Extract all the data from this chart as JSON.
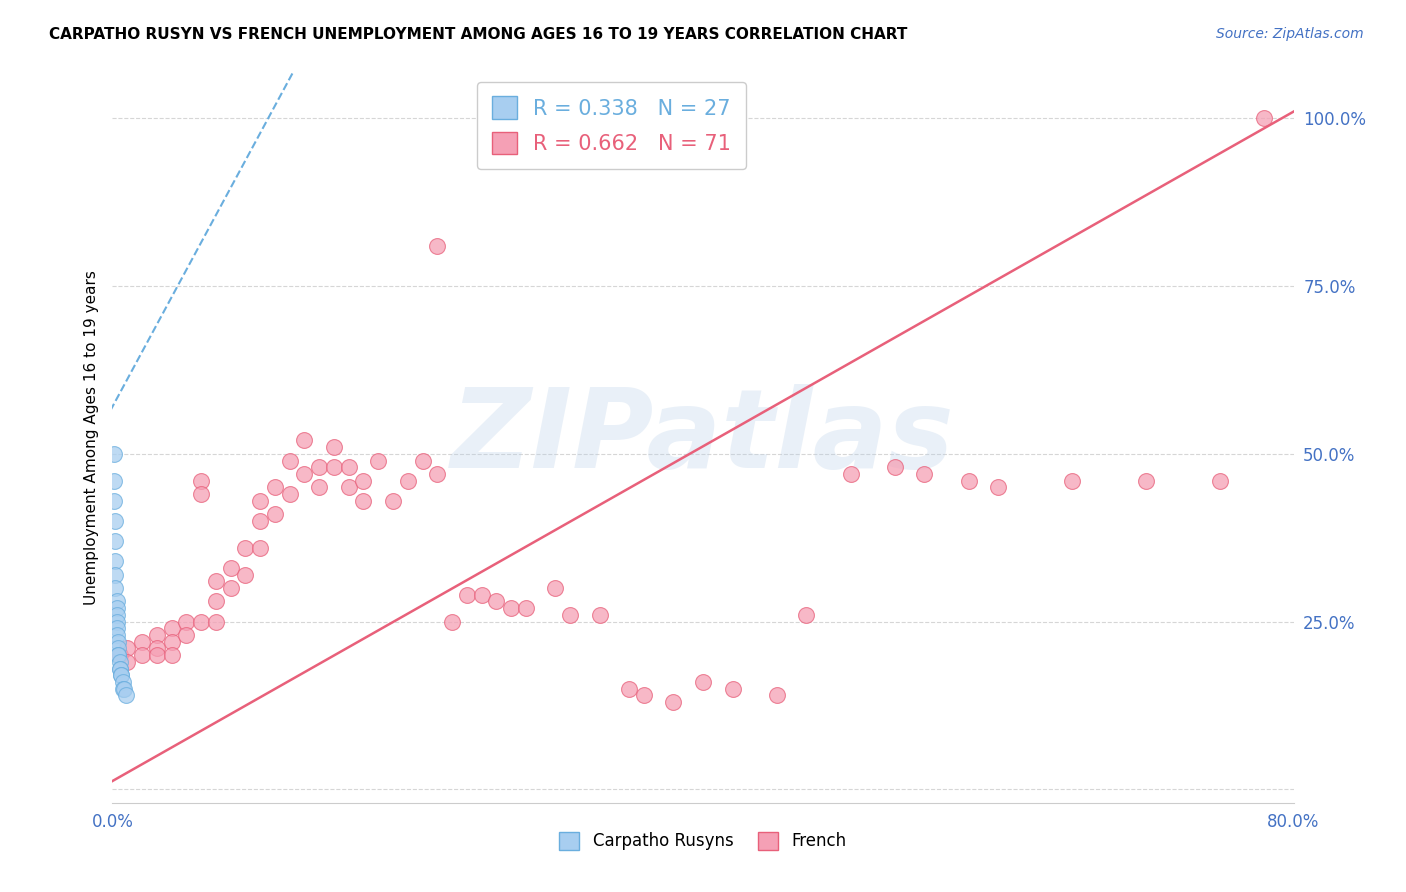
{
  "title": "CARPATHO RUSYN VS FRENCH UNEMPLOYMENT AMONG AGES 16 TO 19 YEARS CORRELATION CHART",
  "source": "Source: ZipAtlas.com",
  "ylabel": "Unemployment Among Ages 16 to 19 years",
  "xlim": [
    0.0,
    0.8
  ],
  "ylim": [
    -0.02,
    1.07
  ],
  "xticks": [
    0.0,
    0.1,
    0.2,
    0.3,
    0.4,
    0.5,
    0.6,
    0.7,
    0.8
  ],
  "xticklabels": [
    "0.0%",
    "",
    "",
    "",
    "",
    "",
    "",
    "",
    "80.0%"
  ],
  "yticks": [
    0.0,
    0.25,
    0.5,
    0.75,
    1.0
  ],
  "yticklabels": [
    "",
    "25.0%",
    "50.0%",
    "75.0%",
    "100.0%"
  ],
  "blue_R": 0.338,
  "blue_N": 27,
  "pink_R": 0.662,
  "pink_N": 71,
  "blue_color": "#a8cef0",
  "pink_color": "#f5a0b5",
  "blue_edge_color": "#6aaede",
  "pink_edge_color": "#e8607a",
  "watermark": "ZIPatlas",
  "legend_label_blue": "Carpatho Rusyns",
  "legend_label_pink": "French",
  "blue_scatter_x": [
    0.001,
    0.001,
    0.001,
    0.002,
    0.002,
    0.002,
    0.002,
    0.002,
    0.003,
    0.003,
    0.003,
    0.003,
    0.003,
    0.003,
    0.004,
    0.004,
    0.004,
    0.004,
    0.005,
    0.005,
    0.005,
    0.006,
    0.006,
    0.007,
    0.007,
    0.008,
    0.009
  ],
  "blue_scatter_y": [
    0.5,
    0.46,
    0.43,
    0.4,
    0.37,
    0.34,
    0.32,
    0.3,
    0.28,
    0.27,
    0.26,
    0.25,
    0.24,
    0.23,
    0.22,
    0.21,
    0.2,
    0.2,
    0.19,
    0.18,
    0.18,
    0.17,
    0.17,
    0.16,
    0.15,
    0.15,
    0.14
  ],
  "blue_line_x": [
    -0.005,
    0.13
  ],
  "blue_line_y": [
    0.55,
    1.1
  ],
  "pink_scatter_x": [
    0.005,
    0.01,
    0.01,
    0.02,
    0.02,
    0.03,
    0.03,
    0.03,
    0.04,
    0.04,
    0.04,
    0.05,
    0.05,
    0.06,
    0.06,
    0.06,
    0.07,
    0.07,
    0.07,
    0.08,
    0.08,
    0.09,
    0.09,
    0.1,
    0.1,
    0.1,
    0.11,
    0.11,
    0.12,
    0.12,
    0.13,
    0.13,
    0.14,
    0.14,
    0.15,
    0.15,
    0.16,
    0.16,
    0.17,
    0.17,
    0.18,
    0.19,
    0.2,
    0.21,
    0.22,
    0.22,
    0.23,
    0.24,
    0.25,
    0.26,
    0.27,
    0.28,
    0.3,
    0.31,
    0.33,
    0.35,
    0.36,
    0.38,
    0.4,
    0.42,
    0.45,
    0.47,
    0.5,
    0.53,
    0.55,
    0.58,
    0.6,
    0.65,
    0.7,
    0.75,
    0.78
  ],
  "pink_scatter_y": [
    0.2,
    0.21,
    0.19,
    0.22,
    0.2,
    0.23,
    0.21,
    0.2,
    0.24,
    0.22,
    0.2,
    0.25,
    0.23,
    0.46,
    0.44,
    0.25,
    0.31,
    0.28,
    0.25,
    0.33,
    0.3,
    0.36,
    0.32,
    0.43,
    0.4,
    0.36,
    0.45,
    0.41,
    0.49,
    0.44,
    0.52,
    0.47,
    0.48,
    0.45,
    0.51,
    0.48,
    0.48,
    0.45,
    0.46,
    0.43,
    0.49,
    0.43,
    0.46,
    0.49,
    0.81,
    0.47,
    0.25,
    0.29,
    0.29,
    0.28,
    0.27,
    0.27,
    0.3,
    0.26,
    0.26,
    0.15,
    0.14,
    0.13,
    0.16,
    0.15,
    0.14,
    0.26,
    0.47,
    0.48,
    0.47,
    0.46,
    0.45,
    0.46,
    0.46,
    0.46,
    1.0
  ],
  "pink_line_x": [
    -0.01,
    0.8
  ],
  "pink_line_y": [
    0.0,
    1.01
  ]
}
